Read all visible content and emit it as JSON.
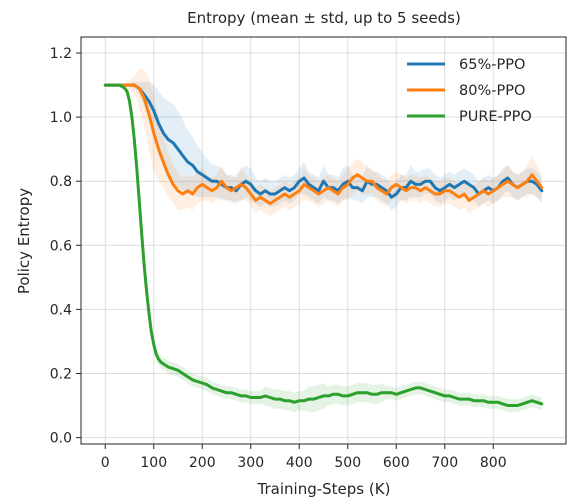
{
  "chart_data": {
    "type": "line",
    "title": "Entropy  (mean ± std, up to 5 seeds)",
    "xlabel": "Training-Steps (K)",
    "ylabel": "Policy Entropy",
    "xlim": [
      -50,
      950
    ],
    "ylim": [
      -0.02,
      1.25
    ],
    "xticks": [
      0,
      100,
      200,
      300,
      400,
      500,
      600,
      700,
      800
    ],
    "xtick_labels": [
      "0",
      "100",
      "200",
      "300",
      "400",
      "500",
      "600",
      "700",
      "800"
    ],
    "yticks": [
      0.0,
      0.2,
      0.4,
      0.6,
      0.8,
      1.0,
      1.2
    ],
    "ytick_labels": [
      "0.0",
      "0.2",
      "0.4",
      "0.6",
      "0.8",
      "1.0",
      "1.2"
    ],
    "grid": true,
    "legend_position": "top-right",
    "series": [
      {
        "name": "65%-PPO",
        "color": "#1f77b4",
        "x": [
          0,
          20,
          40,
          60,
          70,
          80,
          90,
          100,
          110,
          120,
          130,
          140,
          150,
          160,
          170,
          180,
          190,
          200,
          210,
          220,
          230,
          240,
          250,
          260,
          270,
          280,
          290,
          300,
          310,
          320,
          330,
          340,
          350,
          360,
          370,
          380,
          390,
          400,
          410,
          420,
          430,
          440,
          450,
          460,
          470,
          480,
          490,
          500,
          510,
          520,
          530,
          540,
          550,
          560,
          570,
          580,
          590,
          600,
          610,
          620,
          630,
          640,
          650,
          660,
          670,
          680,
          690,
          700,
          710,
          720,
          730,
          740,
          750,
          760,
          770,
          780,
          790,
          800,
          810,
          820,
          830,
          840,
          850,
          860,
          870,
          880,
          890,
          900
        ],
        "y": [
          1.1,
          1.1,
          1.1,
          1.1,
          1.09,
          1.07,
          1.05,
          1.02,
          0.98,
          0.95,
          0.93,
          0.92,
          0.9,
          0.88,
          0.86,
          0.85,
          0.83,
          0.82,
          0.81,
          0.8,
          0.8,
          0.79,
          0.78,
          0.78,
          0.77,
          0.79,
          0.8,
          0.79,
          0.77,
          0.76,
          0.77,
          0.76,
          0.76,
          0.77,
          0.78,
          0.77,
          0.78,
          0.8,
          0.81,
          0.79,
          0.78,
          0.77,
          0.8,
          0.78,
          0.78,
          0.77,
          0.79,
          0.8,
          0.78,
          0.78,
          0.77,
          0.8,
          0.79,
          0.79,
          0.78,
          0.77,
          0.75,
          0.76,
          0.78,
          0.78,
          0.8,
          0.79,
          0.79,
          0.8,
          0.8,
          0.78,
          0.77,
          0.78,
          0.79,
          0.78,
          0.79,
          0.8,
          0.79,
          0.78,
          0.76,
          0.77,
          0.78,
          0.77,
          0.78,
          0.8,
          0.81,
          0.79,
          0.78,
          0.79,
          0.8,
          0.8,
          0.79,
          0.77
        ],
        "std": [
          0.0,
          0.0,
          0.0,
          0.01,
          0.02,
          0.04,
          0.06,
          0.08,
          0.1,
          0.11,
          0.12,
          0.12,
          0.12,
          0.11,
          0.1,
          0.09,
          0.08,
          0.07,
          0.06,
          0.05,
          0.05,
          0.05,
          0.04,
          0.04,
          0.04,
          0.05,
          0.05,
          0.05,
          0.04,
          0.04,
          0.04,
          0.04,
          0.04,
          0.04,
          0.04,
          0.04,
          0.04,
          0.04,
          0.05,
          0.04,
          0.04,
          0.04,
          0.05,
          0.04,
          0.04,
          0.04,
          0.05,
          0.05,
          0.04,
          0.04,
          0.04,
          0.05,
          0.04,
          0.04,
          0.04,
          0.04,
          0.04,
          0.04,
          0.04,
          0.04,
          0.05,
          0.04,
          0.04,
          0.04,
          0.04,
          0.04,
          0.04,
          0.04,
          0.04,
          0.04,
          0.04,
          0.04,
          0.04,
          0.04,
          0.04,
          0.04,
          0.04,
          0.04,
          0.04,
          0.04,
          0.04,
          0.04,
          0.04,
          0.04,
          0.04,
          0.04,
          0.04,
          0.04
        ]
      },
      {
        "name": "80%-PPO",
        "color": "#ff7f0e",
        "x": [
          0,
          20,
          40,
          60,
          70,
          80,
          90,
          100,
          110,
          120,
          130,
          140,
          150,
          160,
          170,
          180,
          190,
          200,
          210,
          220,
          230,
          240,
          250,
          260,
          270,
          280,
          290,
          300,
          310,
          320,
          330,
          340,
          350,
          360,
          370,
          380,
          390,
          400,
          410,
          420,
          430,
          440,
          450,
          460,
          470,
          480,
          490,
          500,
          510,
          520,
          530,
          540,
          550,
          560,
          570,
          580,
          590,
          600,
          610,
          620,
          630,
          640,
          650,
          660,
          670,
          680,
          690,
          700,
          710,
          720,
          730,
          740,
          750,
          760,
          770,
          780,
          790,
          800,
          810,
          820,
          830,
          840,
          850,
          860,
          870,
          880,
          890,
          900
        ],
        "y": [
          1.1,
          1.1,
          1.1,
          1.1,
          1.09,
          1.06,
          1.01,
          0.95,
          0.9,
          0.86,
          0.82,
          0.79,
          0.77,
          0.76,
          0.77,
          0.76,
          0.78,
          0.79,
          0.78,
          0.77,
          0.78,
          0.8,
          0.78,
          0.77,
          0.78,
          0.79,
          0.78,
          0.76,
          0.74,
          0.75,
          0.74,
          0.73,
          0.74,
          0.75,
          0.76,
          0.75,
          0.76,
          0.77,
          0.79,
          0.78,
          0.77,
          0.76,
          0.77,
          0.78,
          0.77,
          0.76,
          0.78,
          0.79,
          0.81,
          0.82,
          0.81,
          0.8,
          0.8,
          0.78,
          0.77,
          0.76,
          0.78,
          0.79,
          0.78,
          0.77,
          0.78,
          0.78,
          0.77,
          0.78,
          0.77,
          0.76,
          0.76,
          0.77,
          0.77,
          0.76,
          0.75,
          0.76,
          0.74,
          0.75,
          0.76,
          0.77,
          0.76,
          0.77,
          0.78,
          0.79,
          0.8,
          0.79,
          0.78,
          0.79,
          0.8,
          0.82,
          0.8,
          0.78
        ],
        "std": [
          0.0,
          0.0,
          0.0,
          0.03,
          0.06,
          0.09,
          0.11,
          0.12,
          0.1,
          0.08,
          0.07,
          0.06,
          0.06,
          0.05,
          0.05,
          0.05,
          0.05,
          0.05,
          0.04,
          0.04,
          0.04,
          0.05,
          0.04,
          0.04,
          0.04,
          0.05,
          0.04,
          0.04,
          0.04,
          0.04,
          0.04,
          0.04,
          0.04,
          0.04,
          0.04,
          0.04,
          0.04,
          0.04,
          0.05,
          0.04,
          0.04,
          0.04,
          0.04,
          0.04,
          0.04,
          0.04,
          0.04,
          0.05,
          0.05,
          0.05,
          0.05,
          0.04,
          0.04,
          0.04,
          0.04,
          0.04,
          0.04,
          0.04,
          0.04,
          0.04,
          0.04,
          0.04,
          0.04,
          0.04,
          0.04,
          0.04,
          0.04,
          0.04,
          0.04,
          0.04,
          0.04,
          0.04,
          0.04,
          0.04,
          0.04,
          0.04,
          0.04,
          0.04,
          0.04,
          0.04,
          0.05,
          0.04,
          0.04,
          0.04,
          0.05,
          0.06,
          0.05,
          0.04
        ]
      },
      {
        "name": "PURE-PPO",
        "color": "#2ca02c",
        "x": [
          0,
          10,
          20,
          30,
          40,
          45,
          50,
          55,
          60,
          65,
          70,
          75,
          80,
          85,
          90,
          95,
          100,
          105,
          110,
          115,
          120,
          130,
          140,
          150,
          160,
          170,
          180,
          190,
          200,
          210,
          220,
          230,
          240,
          250,
          260,
          270,
          280,
          290,
          300,
          310,
          320,
          330,
          340,
          350,
          360,
          370,
          380,
          390,
          400,
          410,
          420,
          430,
          440,
          450,
          460,
          470,
          480,
          490,
          500,
          510,
          520,
          530,
          540,
          550,
          560,
          570,
          580,
          590,
          600,
          610,
          620,
          630,
          640,
          650,
          660,
          670,
          680,
          690,
          700,
          710,
          720,
          730,
          740,
          750,
          760,
          770,
          780,
          790,
          800,
          810,
          820,
          830,
          840,
          850,
          860,
          870,
          880,
          890,
          900
        ],
        "y": [
          1.1,
          1.1,
          1.1,
          1.1,
          1.09,
          1.08,
          1.05,
          1.0,
          0.93,
          0.84,
          0.74,
          0.64,
          0.54,
          0.46,
          0.39,
          0.33,
          0.29,
          0.26,
          0.245,
          0.235,
          0.23,
          0.22,
          0.215,
          0.21,
          0.2,
          0.19,
          0.18,
          0.175,
          0.17,
          0.165,
          0.155,
          0.15,
          0.145,
          0.14,
          0.14,
          0.135,
          0.13,
          0.13,
          0.125,
          0.125,
          0.125,
          0.13,
          0.125,
          0.12,
          0.12,
          0.115,
          0.115,
          0.11,
          0.115,
          0.115,
          0.12,
          0.12,
          0.125,
          0.13,
          0.13,
          0.135,
          0.135,
          0.13,
          0.13,
          0.135,
          0.14,
          0.14,
          0.14,
          0.135,
          0.135,
          0.14,
          0.14,
          0.14,
          0.135,
          0.14,
          0.145,
          0.15,
          0.155,
          0.155,
          0.15,
          0.145,
          0.14,
          0.135,
          0.13,
          0.13,
          0.125,
          0.12,
          0.12,
          0.12,
          0.115,
          0.115,
          0.115,
          0.11,
          0.11,
          0.11,
          0.105,
          0.1,
          0.1,
          0.1,
          0.105,
          0.11,
          0.115,
          0.11,
          0.105
        ],
        "std": [
          0.0,
          0.0,
          0.0,
          0.0,
          0.0,
          0.01,
          0.01,
          0.01,
          0.02,
          0.02,
          0.02,
          0.02,
          0.02,
          0.02,
          0.02,
          0.02,
          0.02,
          0.02,
          0.02,
          0.02,
          0.02,
          0.02,
          0.02,
          0.02,
          0.02,
          0.02,
          0.02,
          0.02,
          0.02,
          0.02,
          0.02,
          0.02,
          0.02,
          0.02,
          0.02,
          0.02,
          0.02,
          0.02,
          0.02,
          0.02,
          0.02,
          0.03,
          0.03,
          0.03,
          0.03,
          0.03,
          0.03,
          0.03,
          0.03,
          0.03,
          0.04,
          0.04,
          0.04,
          0.04,
          0.03,
          0.03,
          0.03,
          0.03,
          0.03,
          0.03,
          0.03,
          0.03,
          0.03,
          0.03,
          0.03,
          0.03,
          0.02,
          0.02,
          0.02,
          0.02,
          0.02,
          0.02,
          0.02,
          0.02,
          0.02,
          0.02,
          0.02,
          0.02,
          0.02,
          0.02,
          0.02,
          0.02,
          0.02,
          0.02,
          0.02,
          0.02,
          0.02,
          0.02,
          0.02,
          0.02,
          0.02,
          0.02,
          0.02,
          0.02,
          0.02,
          0.02,
          0.02,
          0.02,
          0.02
        ]
      }
    ]
  }
}
